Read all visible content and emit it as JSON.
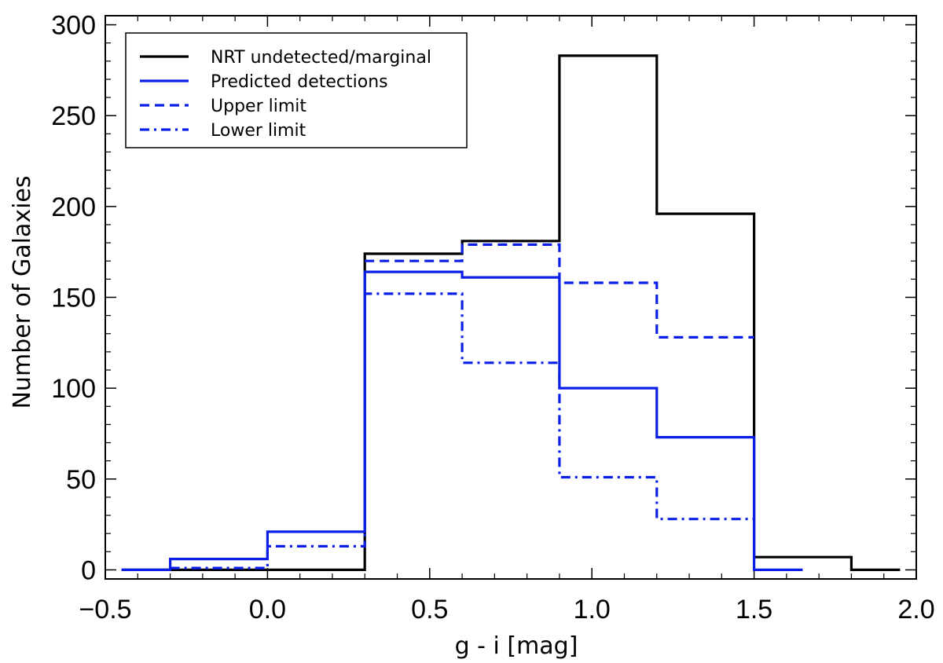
{
  "chart_data": {
    "type": "histogram",
    "xlabel": "g - i [mag]",
    "ylabel": "Number of Galaxies",
    "xlim": [
      -0.5,
      2.0
    ],
    "ylim": [
      -5,
      305
    ],
    "x_ticks": [
      -0.5,
      0.0,
      0.5,
      1.0,
      1.5,
      2.0
    ],
    "x_tick_labels": [
      "−0.5",
      "0.0",
      "0.5",
      "1.0",
      "1.5",
      "2.0"
    ],
    "y_ticks": [
      0,
      50,
      100,
      150,
      200,
      250,
      300
    ],
    "y_tick_labels": [
      "0",
      "50",
      "100",
      "150",
      "200",
      "250",
      "300"
    ],
    "legend_position": "top-left",
    "bin_edges": [
      -0.45,
      -0.3,
      0.0,
      0.3,
      0.6,
      0.9,
      1.2,
      1.5,
      1.65,
      1.8,
      1.95
    ],
    "series": [
      {
        "name": "NRT undetected/marginal",
        "color": "#000000",
        "dash": "solid",
        "edges": [
          -0.45,
          -0.3,
          0.0,
          0.3,
          0.6,
          0.9,
          1.2,
          1.5,
          1.8,
          1.95
        ],
        "values": [
          0,
          0,
          0,
          174,
          181,
          283,
          196,
          7,
          0
        ]
      },
      {
        "name": "Predicted detections",
        "color": "#0a1ee6",
        "dash": "solid",
        "edges": [
          -0.45,
          -0.3,
          0.0,
          0.3,
          0.6,
          0.9,
          1.2,
          1.5,
          1.65
        ],
        "values": [
          0,
          6,
          21,
          164,
          161,
          100,
          73,
          0
        ]
      },
      {
        "name": "Upper limit",
        "color": "#0a1ee6",
        "dash": "dashed",
        "edges": [
          0.3,
          0.6,
          0.9,
          1.2,
          1.5
        ],
        "values": [
          170,
          179,
          158,
          128
        ]
      },
      {
        "name": "Lower limit",
        "color": "#0a1ee6",
        "dash": "dashdot",
        "edges": [
          -0.3,
          0.0,
          0.3,
          0.6,
          0.9,
          1.2,
          1.5
        ],
        "values": [
          1,
          13,
          152,
          114,
          51,
          28
        ]
      }
    ]
  }
}
